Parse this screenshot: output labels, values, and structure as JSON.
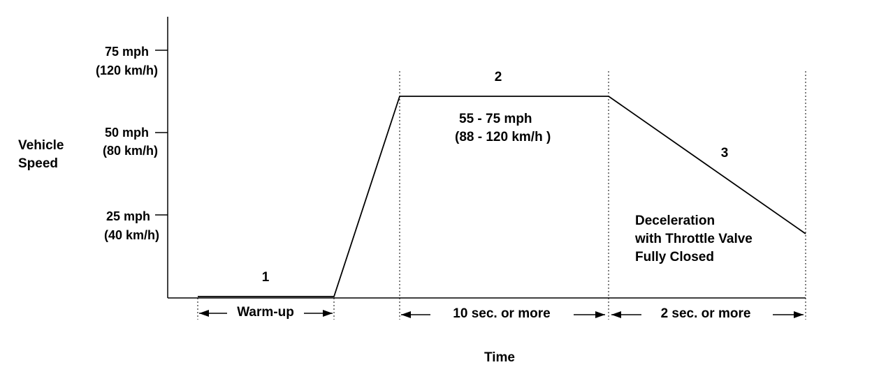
{
  "y_axis": {
    "label_line1": "Vehicle",
    "label_line2": "Speed",
    "ticks": [
      {
        "mph": "75 mph",
        "kmh": "(120 km/h)"
      },
      {
        "mph": "50 mph",
        "kmh": "(80 km/h)"
      },
      {
        "mph": "25 mph",
        "kmh": "(40 km/h)"
      }
    ]
  },
  "x_axis": {
    "label": "Time"
  },
  "phases": [
    {
      "number": "1",
      "duration": "Warm-up"
    },
    {
      "number": "2",
      "speed_mph": "55 - 75 mph",
      "speed_kmh": "(88 - 120 km/h )",
      "duration": "10 sec. or more"
    },
    {
      "number": "3",
      "note_line1": "Deceleration",
      "note_line2": "with Throttle Valve",
      "note_line3": "Fully Closed",
      "duration": "2 sec. or more"
    }
  ]
}
